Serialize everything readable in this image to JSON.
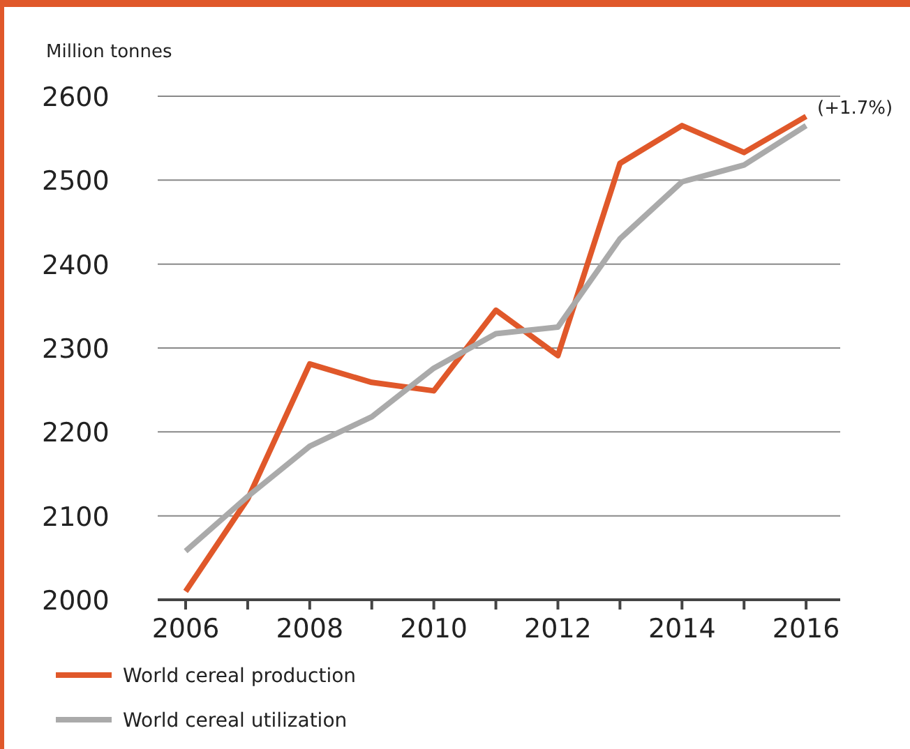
{
  "chart_data": {
    "type": "line",
    "ylabel": "Million tonnes",
    "x": [
      2006,
      2007,
      2008,
      2009,
      2010,
      2011,
      2012,
      2013,
      2014,
      2015,
      2016
    ],
    "series": [
      {
        "name": "World cereal production",
        "color": "#e0582a",
        "values": [
          2010,
          2120,
          2281,
          2259,
          2249,
          2345,
          2291,
          2520,
          2565,
          2533,
          2576
        ]
      },
      {
        "name": "World cereal utilization",
        "color": "#aaaaaa",
        "values": [
          2058,
          2123,
          2183,
          2218,
          2276,
          2317,
          2325,
          2430,
          2498,
          2518,
          2565
        ]
      }
    ],
    "xlim": [
      2005.55,
      2016.55
    ],
    "xticks": [
      2006,
      {
        "value": 2007,
        "label": null
      },
      2008,
      {
        "value": 2009,
        "label": null
      },
      2010,
      {
        "value": 2011,
        "label": null
      },
      2012,
      {
        "value": 2013,
        "label": null
      },
      2014,
      {
        "value": 2015,
        "label": null
      },
      2016
    ],
    "ylim": [
      2000,
      2600
    ],
    "yticks": [
      2000,
      2100,
      2200,
      2300,
      2400,
      2500,
      2600
    ],
    "grid": "y",
    "legend": "bottom left",
    "marker": "none",
    "line_style": "solid",
    "annotations": [
      {
        "text": "(+1.7%)",
        "x": 2016,
        "y": 2576
      }
    ]
  }
}
